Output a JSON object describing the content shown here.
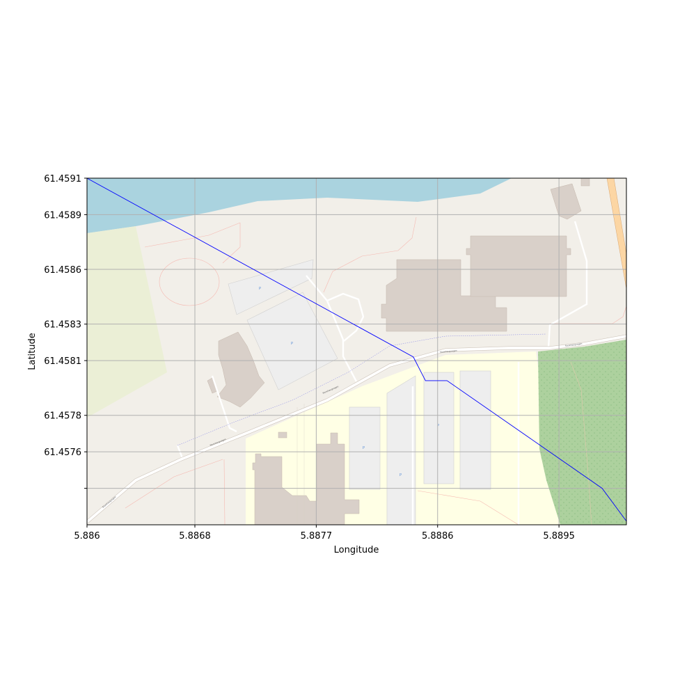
{
  "figure": {
    "xlabel": "Longitude",
    "ylabel": "Latitude"
  },
  "chart_data": {
    "type": "line",
    "xlim": [
      5.886,
      5.89
    ],
    "ylim": [
      61.4572,
      61.4591
    ],
    "x_ticks": [
      5.886,
      5.8868,
      5.8877,
      5.8886,
      5.8895
    ],
    "x_tick_labels": [
      "5.886",
      "5.8868",
      "5.8877",
      "5.8886",
      "5.8895"
    ],
    "y_ticks": [
      61.4591,
      61.4589,
      61.4586,
      61.4583,
      61.4581,
      61.4578,
      61.4576,
      61.4574
    ],
    "y_tick_labels": [
      "61.4591",
      "61.4589",
      "61.4586",
      "61.4583",
      "61.4581",
      "61.4578",
      "61.4576",
      ""
    ],
    "grid": true,
    "basemap": "street map",
    "route_color": "#0000ff",
    "series": [
      {
        "x": [
          5.886,
          5.88842,
          5.88851,
          5.88867,
          5.88982,
          5.89
        ],
        "y": [
          61.4591,
          61.45812,
          61.45799,
          61.45799,
          61.4574,
          61.45722
        ]
      }
    ]
  },
  "map_labels": {
    "street_1": "Storehaugvegen",
    "street_2": "Storehaugvegen",
    "street_3": "Storehaugvegen",
    "street_4": "Storehaugvegen",
    "street_5": "Storehaugvegen",
    "parking": "P"
  }
}
